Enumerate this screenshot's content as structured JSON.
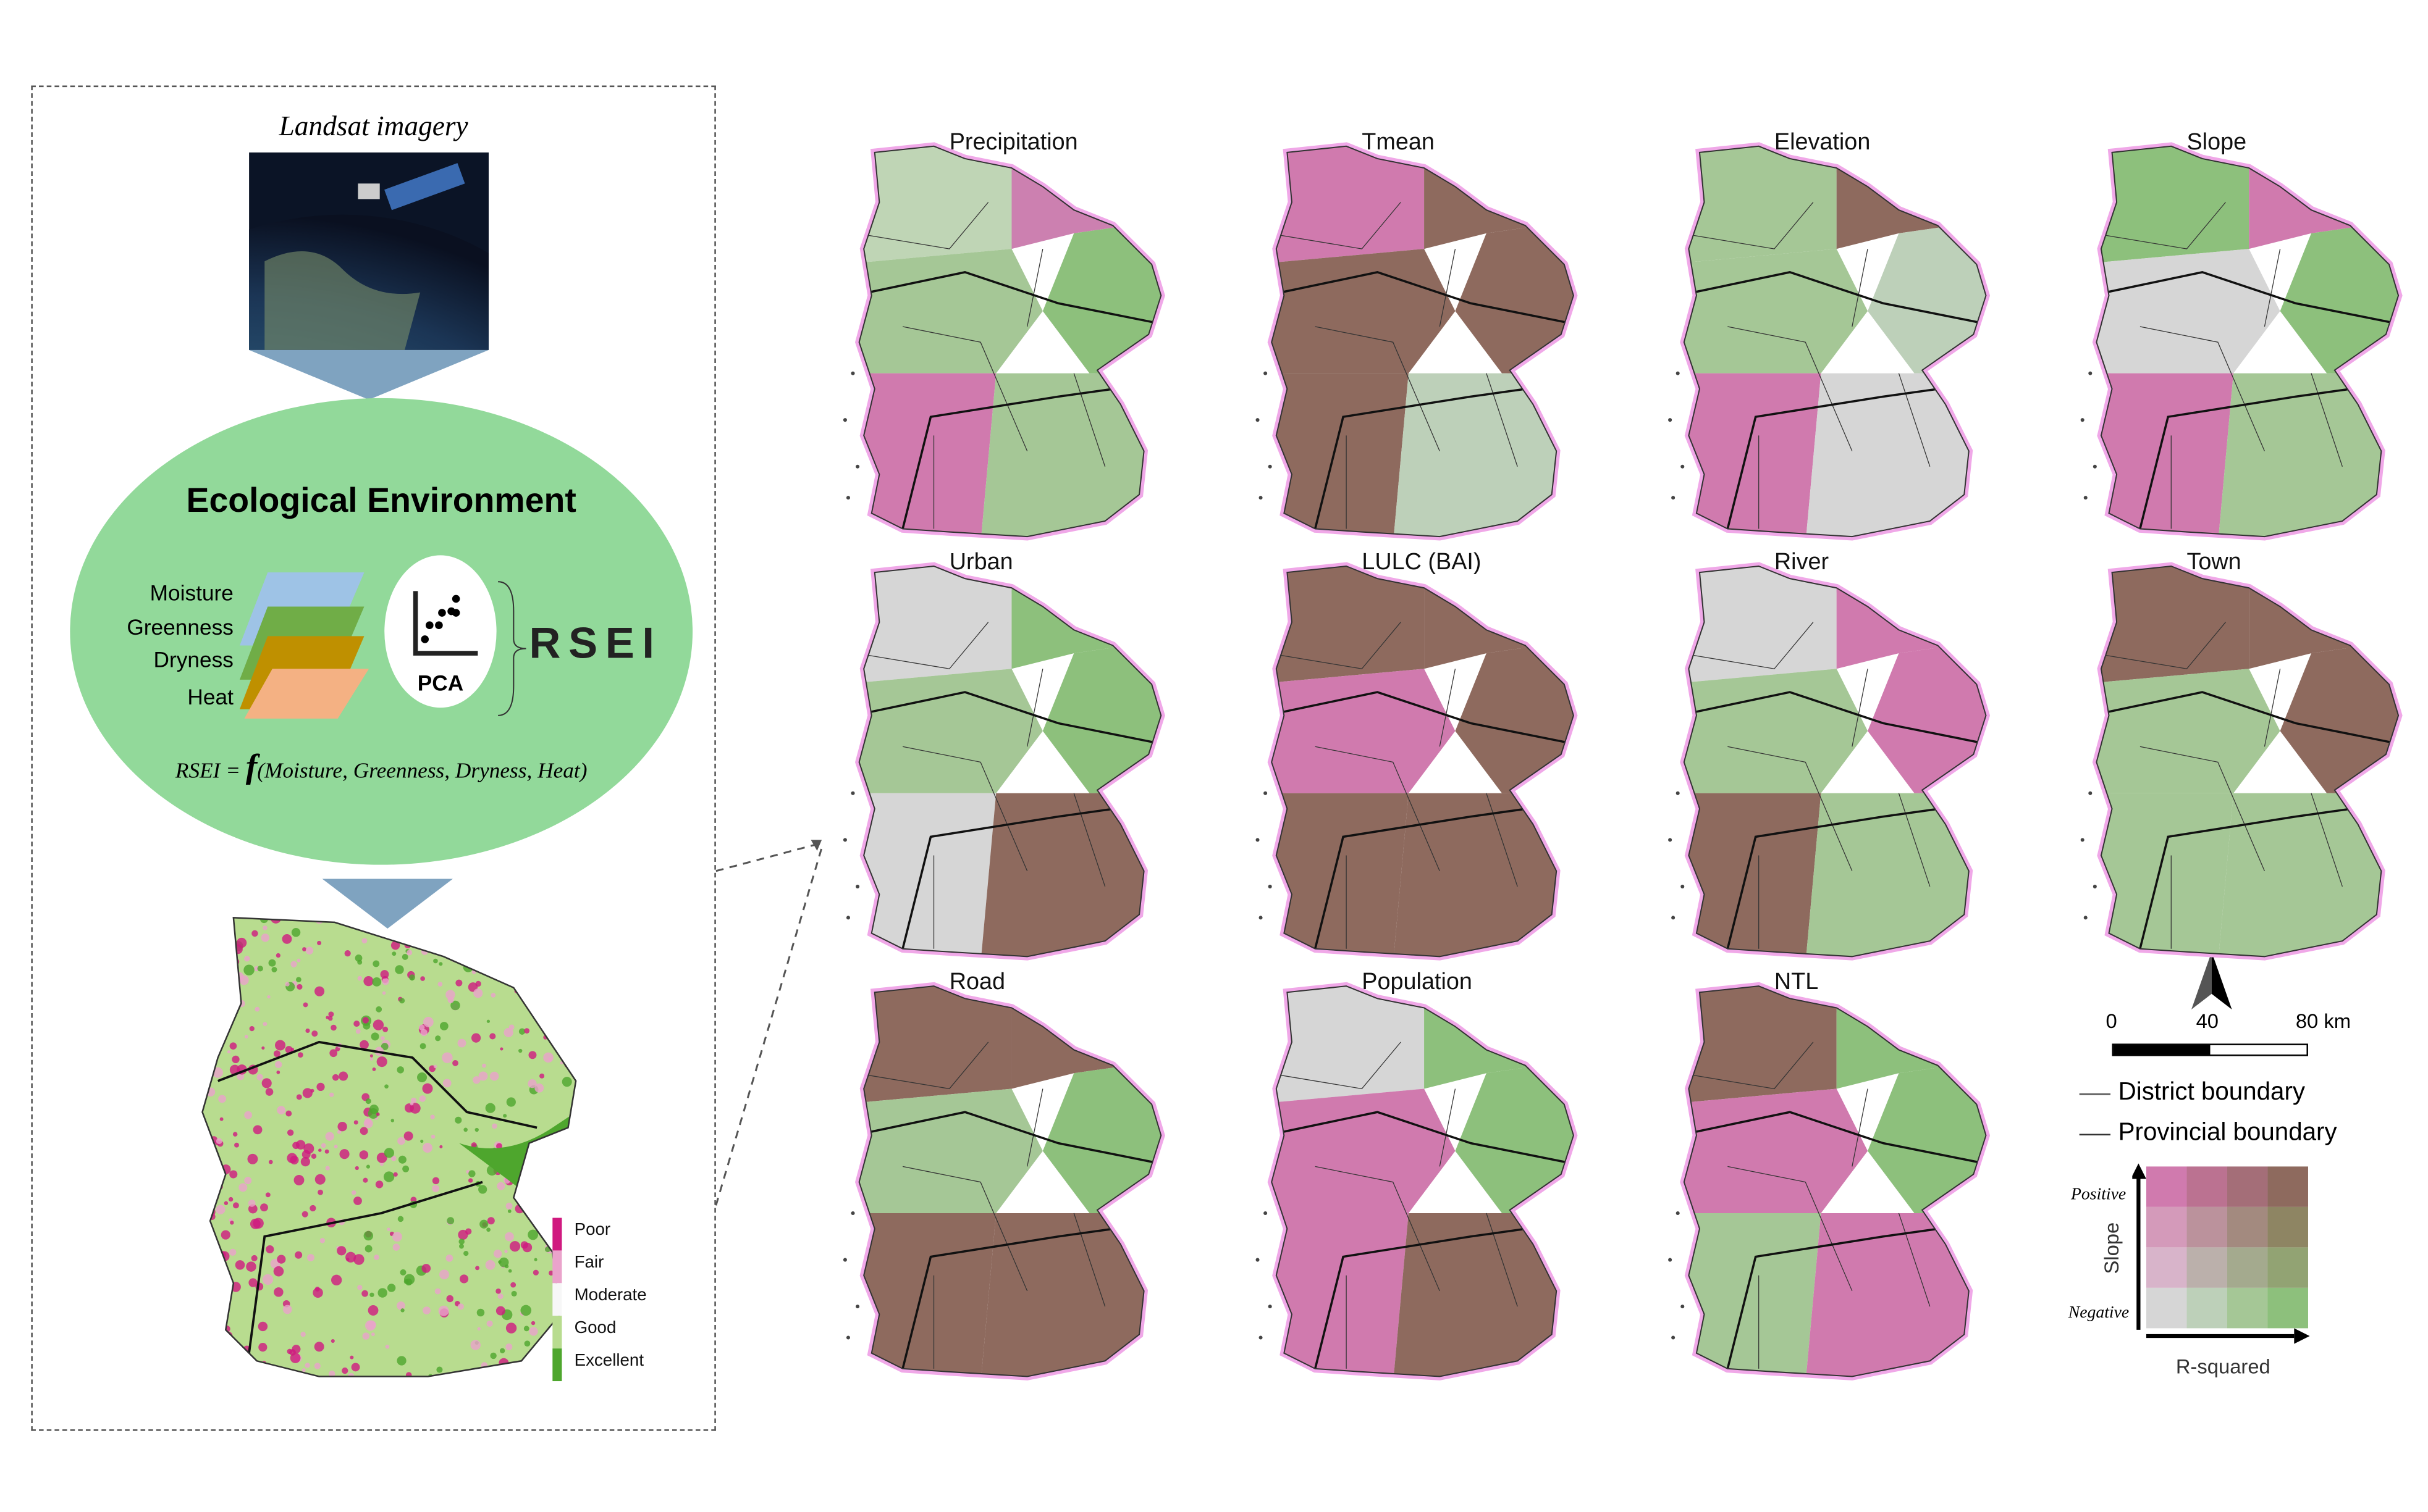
{
  "left_panel": {
    "imagery_label": "Landsat imagery",
    "eco_title": "Ecological Environment",
    "components": [
      "Moisture",
      "Greenness",
      "Dryness",
      "Heat"
    ],
    "component_colors": [
      "#9ec3e6",
      "#70ad47",
      "#bf9000",
      "#f4b183"
    ],
    "pca_label": "PCA",
    "rsei_label": "RSEI",
    "formula_lhs": "RSEI =",
    "formula_f": "f",
    "formula_args": "(Moisture, Greenness, Dryness, Heat)",
    "ellipse_color": "#92d99a",
    "rsei_legend": [
      {
        "label": "Poor",
        "color": "#d0197f"
      },
      {
        "label": "Fair",
        "color": "#eaa3cb"
      },
      {
        "label": "Moderate",
        "color": "#f7f7f7"
      },
      {
        "label": "Good",
        "color": "#b8dc8f"
      },
      {
        "label": "Excellent",
        "color": "#4ea62d"
      }
    ]
  },
  "maps": [
    {
      "title": "Precipitation",
      "colors": [
        "#bfd5b5",
        "#cc80b0",
        "#8dc07c",
        "#a5c796",
        "#d07aae",
        "#a5c796"
      ]
    },
    {
      "title": "Tmean",
      "colors": [
        "#d07aae",
        "#8e6a5e",
        "#8e6a5e",
        "#8e6a5e",
        "#8e6a5e",
        "#bdd0b9"
      ]
    },
    {
      "title": "Elevation",
      "colors": [
        "#a5c796",
        "#8e6a5e",
        "#bdd0b9",
        "#a5c796",
        "#d07aae",
        "#d6d6d6"
      ]
    },
    {
      "title": "Slope",
      "colors": [
        "#8dc07c",
        "#d07aae",
        "#8dc07c",
        "#d6d6d6",
        "#d07aae",
        "#a5c796"
      ]
    },
    {
      "title": "Urban",
      "colors": [
        "#d6d6d6",
        "#8dc07c",
        "#8dc07c",
        "#a5c796",
        "#d6d6d6",
        "#8e6a5e"
      ]
    },
    {
      "title": "LULC (BAI)",
      "colors": [
        "#8e6a5e",
        "#8e6a5e",
        "#8e6a5e",
        "#d07aae",
        "#8e6a5e",
        "#8e6a5e"
      ]
    },
    {
      "title": "River",
      "colors": [
        "#d6d6d6",
        "#d07aae",
        "#d07aae",
        "#a5c796",
        "#8e6a5e",
        "#a5c796"
      ]
    },
    {
      "title": "Town",
      "colors": [
        "#8e6a5e",
        "#8e6a5e",
        "#8e6a5e",
        "#a5c796",
        "#a5c796",
        "#a5c796"
      ]
    },
    {
      "title": "Road",
      "colors": [
        "#8e6a5e",
        "#8e6a5e",
        "#8dc07c",
        "#a5c796",
        "#8e6a5e",
        "#8e6a5e"
      ]
    },
    {
      "title": "Population",
      "colors": [
        "#d6d6d6",
        "#8dc07c",
        "#8dc07c",
        "#d07aae",
        "#d07aae",
        "#8e6a5e"
      ]
    },
    {
      "title": "NTL",
      "colors": [
        "#8e6a5e",
        "#8dc07c",
        "#8dc07c",
        "#d07aae",
        "#a5c796",
        "#d07aae"
      ]
    }
  ],
  "north_label": "N",
  "scale_bar": {
    "labels": [
      "0",
      "40",
      "80 km"
    ]
  },
  "boundary_legend": {
    "district": "District boundary",
    "provincial": "Provincial boundary"
  },
  "bivariate_legend": {
    "y_axis": "Slope",
    "y_high": "Positive",
    "y_low": "Negative",
    "x_axis": "R-squared",
    "colors": [
      [
        "#d07aae",
        "#bb7291",
        "#a46e78",
        "#8e6a5e"
      ],
      [
        "#d49aba",
        "#bb929c",
        "#a38a7f",
        "#8e8563"
      ],
      [
        "#d8b4ca",
        "#bbb0ab",
        "#a4aa8e",
        "#92a373"
      ],
      [
        "#d6d6d6",
        "#bdd0b9",
        "#a5c796",
        "#8dc07c"
      ]
    ]
  }
}
